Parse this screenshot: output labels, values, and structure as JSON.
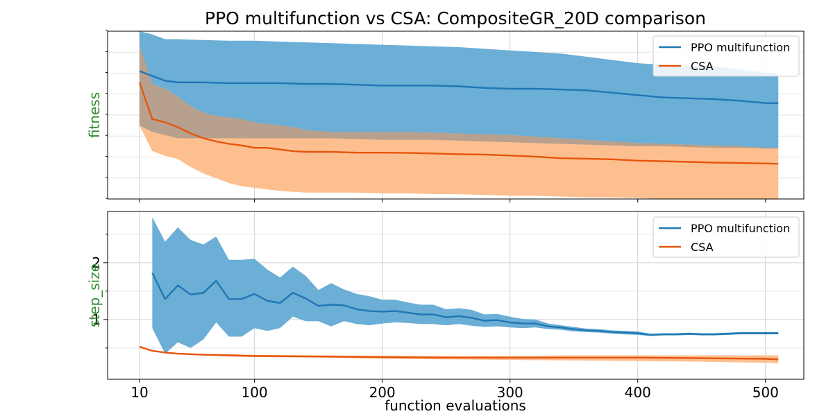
{
  "chart_data": {
    "type": "line",
    "title": "PPO multifunction vs CSA: CompositeGR_20D comparison",
    "xlabel": "function evaluations",
    "xlim": [
      -15,
      530
    ],
    "x_ticks": [
      10,
      100,
      200,
      300,
      400,
      500
    ],
    "colors": {
      "ppo": "#1f77b4",
      "ppo_band": "#6baed6",
      "csa": "#e6550d",
      "csa_band": "#fdbf8f",
      "overlap_band": "#b7a08d",
      "label": "#2e8b2e"
    },
    "panels": [
      {
        "ylabel": "fitness",
        "ylim": [
          0,
          1.05
        ],
        "y_ticks": [],
        "legend_position": "top-right",
        "series": [
          {
            "name": "PPO multifunction",
            "color_key": "ppo",
            "band_color_key": "ppo_band",
            "x": [
              10,
              20,
              30,
              40,
              60,
              80,
              100,
              120,
              140,
              160,
              180,
              200,
              220,
              240,
              260,
              280,
              300,
              320,
              340,
              360,
              380,
              400,
              420,
              440,
              460,
              480,
              500,
              510
            ],
            "y": [
              0.8,
              0.77,
              0.74,
              0.73,
              0.73,
              0.725,
              0.725,
              0.725,
              0.72,
              0.72,
              0.715,
              0.71,
              0.71,
              0.71,
              0.705,
              0.695,
              0.69,
              0.69,
              0.685,
              0.68,
              0.665,
              0.65,
              0.635,
              0.63,
              0.625,
              0.615,
              0.6,
              0.6
            ],
            "lower": [
              0.46,
              0.42,
              0.4,
              0.38,
              0.38,
              0.38,
              0.38,
              0.38,
              0.38,
              0.38,
              0.375,
              0.37,
              0.37,
              0.37,
              0.365,
              0.36,
              0.355,
              0.35,
              0.345,
              0.34,
              0.335,
              0.33,
              0.33,
              0.325,
              0.32,
              0.32,
              0.315,
              0.315
            ],
            "upper": [
              1.05,
              1.03,
              1.0,
              1.0,
              0.995,
              0.99,
              0.99,
              0.985,
              0.98,
              0.975,
              0.97,
              0.965,
              0.96,
              0.955,
              0.95,
              0.94,
              0.93,
              0.92,
              0.91,
              0.89,
              0.87,
              0.85,
              0.84,
              0.835,
              0.83,
              0.81,
              0.79,
              0.785
            ]
          },
          {
            "name": "CSA",
            "color_key": "csa",
            "band_color_key": "csa_band",
            "x": [
              10,
              20,
              30,
              40,
              50,
              60,
              70,
              80,
              90,
              100,
              110,
              120,
              130,
              140,
              160,
              180,
              200,
              220,
              240,
              260,
              280,
              300,
              320,
              340,
              360,
              380,
              400,
              420,
              440,
              460,
              480,
              500,
              510
            ],
            "y": [
              0.73,
              0.5,
              0.48,
              0.45,
              0.41,
              0.38,
              0.36,
              0.345,
              0.335,
              0.32,
              0.32,
              0.31,
              0.3,
              0.295,
              0.295,
              0.29,
              0.29,
              0.288,
              0.285,
              0.28,
              0.278,
              0.272,
              0.265,
              0.255,
              0.252,
              0.248,
              0.24,
              0.236,
              0.232,
              0.228,
              0.225,
              0.222,
              0.22
            ],
            "lower": [
              0.46,
              0.3,
              0.27,
              0.25,
              0.2,
              0.16,
              0.13,
              0.1,
              0.08,
              0.07,
              0.06,
              0.05,
              0.045,
              0.04,
              0.04,
              0.04,
              0.035,
              0.035,
              0.03,
              0.03,
              0.025,
              0.02,
              0.02,
              0.015,
              0.01,
              0.01,
              0.005,
              0.0,
              0.0,
              0.0,
              0.0,
              0.0,
              0.0
            ],
            "upper": [
              0.96,
              0.72,
              0.69,
              0.64,
              0.58,
              0.54,
              0.52,
              0.51,
              0.5,
              0.48,
              0.47,
              0.46,
              0.45,
              0.43,
              0.42,
              0.42,
              0.42,
              0.42,
              0.415,
              0.41,
              0.405,
              0.4,
              0.39,
              0.38,
              0.37,
              0.36,
              0.35,
              0.345,
              0.34,
              0.335,
              0.33,
              0.32,
              0.32
            ]
          }
        ]
      },
      {
        "ylabel": "step_size",
        "ylim": [
          -0.05,
          2.9
        ],
        "y_ticks": [
          1,
          2
        ],
        "legend_position": "top-right",
        "series": [
          {
            "name": "PPO multifunction",
            "color_key": "ppo",
            "band_color_key": "ppo_band",
            "x": [
              20,
              30,
              40,
              50,
              60,
              70,
              80,
              90,
              100,
              110,
              120,
              130,
              140,
              150,
              160,
              170,
              180,
              190,
              200,
              210,
              220,
              230,
              240,
              250,
              260,
              270,
              280,
              290,
              300,
              310,
              320,
              330,
              340,
              350,
              360,
              370,
              380,
              390,
              400,
              410,
              420,
              430,
              440,
              450,
              460,
              470,
              480,
              490,
              500,
              510
            ],
            "y": [
              1.82,
              1.36,
              1.6,
              1.44,
              1.47,
              1.68,
              1.36,
              1.36,
              1.45,
              1.33,
              1.29,
              1.47,
              1.37,
              1.24,
              1.26,
              1.25,
              1.18,
              1.15,
              1.14,
              1.15,
              1.12,
              1.09,
              1.09,
              1.04,
              1.06,
              1.03,
              0.98,
              0.99,
              0.95,
              0.93,
              0.93,
              0.88,
              0.86,
              0.83,
              0.81,
              0.8,
              0.78,
              0.77,
              0.76,
              0.73,
              0.74,
              0.74,
              0.75,
              0.74,
              0.74,
              0.75,
              0.76,
              0.76,
              0.76,
              0.76
            ],
            "lower": [
              0.85,
              0.4,
              0.6,
              0.5,
              0.65,
              0.95,
              0.7,
              0.7,
              0.85,
              0.8,
              0.85,
              1.05,
              0.97,
              0.97,
              0.88,
              0.97,
              0.92,
              0.9,
              0.93,
              0.95,
              0.94,
              0.92,
              0.92,
              0.9,
              0.92,
              0.89,
              0.87,
              0.88,
              0.86,
              0.85,
              0.86,
              0.83,
              0.82,
              0.79,
              0.78,
              0.77,
              0.75,
              0.74,
              0.73,
              0.71,
              0.72,
              0.72,
              0.73,
              0.72,
              0.72,
              0.73,
              0.74,
              0.74,
              0.74,
              0.74
            ],
            "upper": [
              2.8,
              2.37,
              2.62,
              2.4,
              2.32,
              2.46,
              2.05,
              2.05,
              2.07,
              1.88,
              1.74,
              1.93,
              1.77,
              1.52,
              1.64,
              1.53,
              1.45,
              1.41,
              1.35,
              1.35,
              1.3,
              1.26,
              1.26,
              1.18,
              1.2,
              1.17,
              1.09,
              1.1,
              1.05,
              1.01,
              1.0,
              0.93,
              0.9,
              0.87,
              0.84,
              0.83,
              0.81,
              0.8,
              0.79,
              0.75,
              0.76,
              0.76,
              0.77,
              0.76,
              0.76,
              0.77,
              0.78,
              0.78,
              0.78,
              0.78
            ]
          },
          {
            "name": "CSA",
            "color_key": "csa",
            "band_color_key": "csa_band",
            "x": [
              10,
              20,
              30,
              40,
              60,
              80,
              100,
              150,
              200,
              250,
              300,
              350,
              400,
              450,
              500,
              510
            ],
            "y": [
              0.52,
              0.45,
              0.42,
              0.4,
              0.38,
              0.37,
              0.36,
              0.35,
              0.34,
              0.33,
              0.33,
              0.33,
              0.33,
              0.32,
              0.31,
              0.3
            ],
            "lower": [
              0.52,
              0.44,
              0.41,
              0.39,
              0.37,
              0.35,
              0.34,
              0.33,
              0.31,
              0.3,
              0.29,
              0.28,
              0.27,
              0.26,
              0.24,
              0.23
            ],
            "upper": [
              0.52,
              0.46,
              0.43,
              0.41,
              0.4,
              0.39,
              0.38,
              0.37,
              0.36,
              0.36,
              0.36,
              0.37,
              0.37,
              0.37,
              0.37,
              0.37
            ]
          }
        ]
      }
    ]
  }
}
